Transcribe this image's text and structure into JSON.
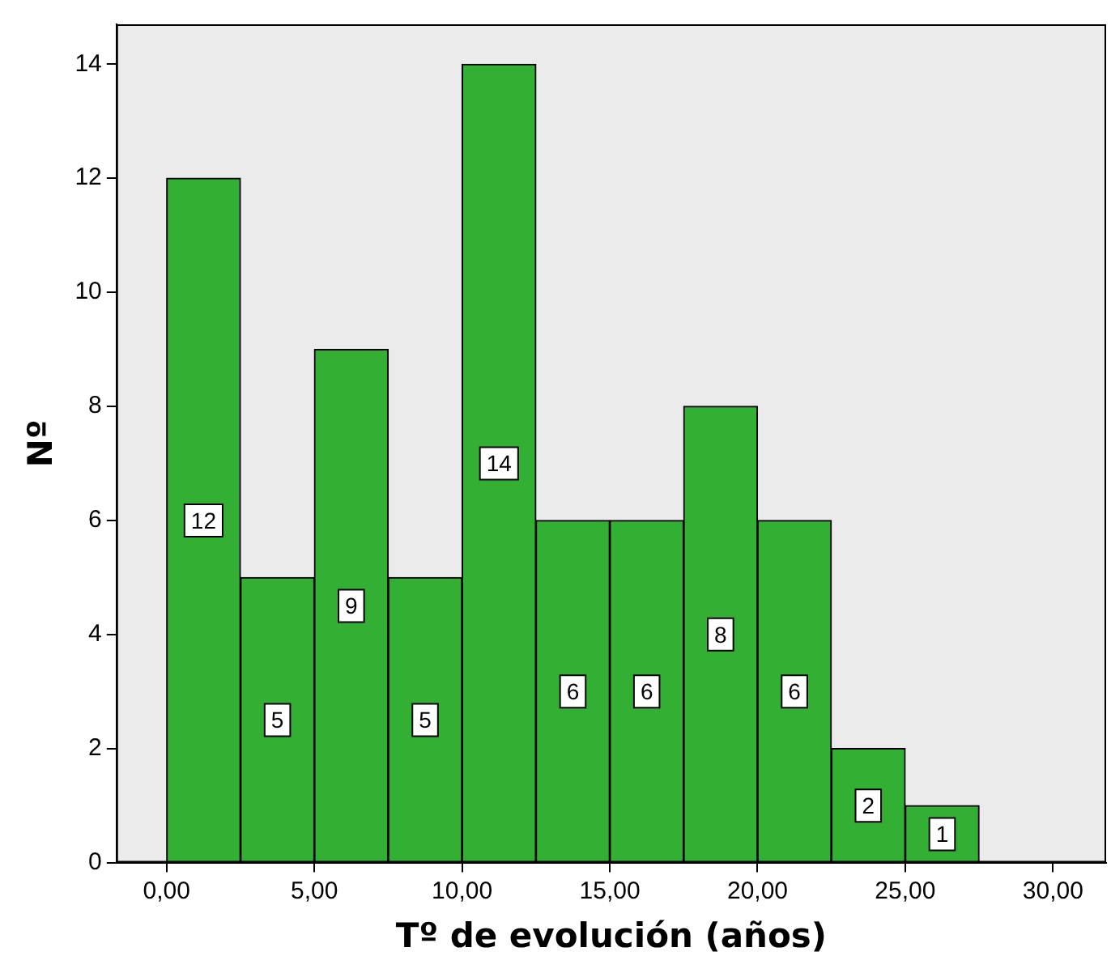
{
  "chart_data": {
    "type": "histogram",
    "xlabel": "Tº de evolución (años)",
    "ylabel": "Nº",
    "bins": [
      0,
      2.5,
      5,
      7.5,
      10,
      12.5,
      15,
      17.5,
      20,
      22.5,
      25,
      27.5
    ],
    "values": [
      12,
      5,
      9,
      5,
      14,
      6,
      6,
      8,
      6,
      2,
      1
    ],
    "color": "#33b033",
    "data_labels": true,
    "grid": false,
    "legend": false,
    "xlim": [
      -1.7,
      31.8
    ],
    "xticks": [
      {
        "value": 0,
        "label": "0,00"
      },
      {
        "value": 5,
        "label": "5,00"
      },
      {
        "value": 10,
        "label": "10,00"
      },
      {
        "value": 15,
        "label": "15,00"
      },
      {
        "value": 20,
        "label": "20,00"
      },
      {
        "value": 25,
        "label": "25,00"
      },
      {
        "value": 30,
        "label": "30,00"
      }
    ],
    "ylim": [
      0,
      14.7
    ],
    "yticks": [
      0,
      2,
      4,
      6,
      8,
      10,
      12,
      14
    ]
  }
}
